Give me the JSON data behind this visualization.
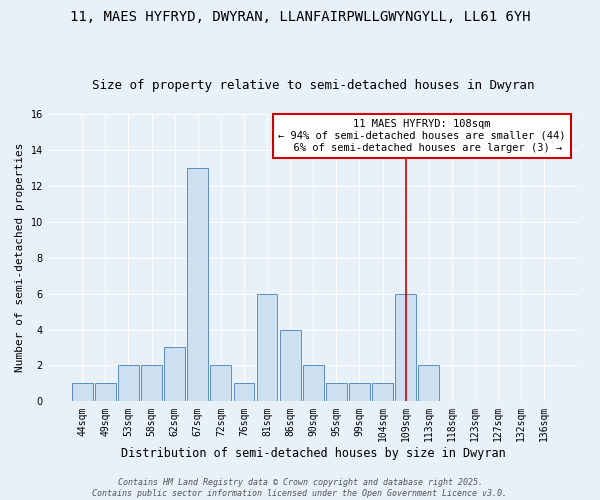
{
  "title": "11, MAES HYFRYD, DWYRAN, LLANFAIRPWLLGWYNGYLL, LL61 6YH",
  "subtitle": "Size of property relative to semi-detached houses in Dwyran",
  "xlabel": "Distribution of semi-detached houses by size in Dwyran",
  "ylabel": "Number of semi-detached properties",
  "categories": [
    "44sqm",
    "49sqm",
    "53sqm",
    "58sqm",
    "62sqm",
    "67sqm",
    "72sqm",
    "76sqm",
    "81sqm",
    "86sqm",
    "90sqm",
    "95sqm",
    "99sqm",
    "104sqm",
    "109sqm",
    "113sqm",
    "118sqm",
    "123sqm",
    "127sqm",
    "132sqm",
    "136sqm"
  ],
  "values": [
    1,
    1,
    2,
    2,
    3,
    13,
    2,
    1,
    6,
    4,
    2,
    1,
    1,
    1,
    6,
    2,
    0,
    0,
    0,
    0,
    0
  ],
  "bar_color": "#cce0f0",
  "bar_edge_color": "#5b8fc9",
  "vline_x_index": 14,
  "vline_color": "#cc0000",
  "annotation_text": "11 MAES HYFRYD: 108sqm\n← 94% of semi-detached houses are smaller (44)\n  6% of semi-detached houses are larger (3) →",
  "annotation_box_color": "#ffffff",
  "annotation_box_edge_color": "#cc0000",
  "ylim": [
    0,
    16
  ],
  "yticks": [
    0,
    2,
    4,
    6,
    8,
    10,
    12,
    14,
    16
  ],
  "background_color": "#e8f0f8",
  "footer_text": "Contains HM Land Registry data © Crown copyright and database right 2025.\nContains public sector information licensed under the Open Government Licence v3.0.",
  "title_fontsize": 10,
  "subtitle_fontsize": 9,
  "xlabel_fontsize": 8.5,
  "ylabel_fontsize": 8,
  "tick_fontsize": 7,
  "annotation_fontsize": 7.5,
  "footer_fontsize": 6
}
